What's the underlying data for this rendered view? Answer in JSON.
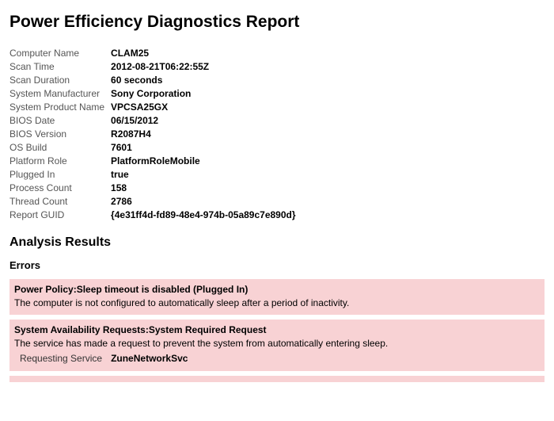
{
  "report": {
    "title": "Power Efficiency Diagnostics Report",
    "fields": [
      {
        "label": "Computer Name",
        "value": "CLAM25"
      },
      {
        "label": "Scan Time",
        "value": "2012-08-21T06:22:55Z"
      },
      {
        "label": "Scan Duration",
        "value": "60 seconds"
      },
      {
        "label": "System Manufacturer",
        "value": "Sony Corporation"
      },
      {
        "label": "System Product Name",
        "value": "VPCSA25GX"
      },
      {
        "label": "BIOS Date",
        "value": "06/15/2012"
      },
      {
        "label": "BIOS Version",
        "value": "R2087H4"
      },
      {
        "label": "OS Build",
        "value": "7601"
      },
      {
        "label": "Platform Role",
        "value": "PlatformRoleMobile"
      },
      {
        "label": "Plugged In",
        "value": "true"
      },
      {
        "label": "Process Count",
        "value": "158"
      },
      {
        "label": "Thread Count",
        "value": "2786"
      },
      {
        "label": "Report GUID",
        "value": "{4e31ff4d-fd89-48e4-974b-05a89c7e890d}"
      }
    ],
    "analysis_heading": "Analysis Results",
    "errors_heading": "Errors",
    "colors": {
      "error_background": "#f8d2d4",
      "page_background": "#ffffff",
      "label_color": "#555555",
      "text_color": "#000000"
    },
    "errors": [
      {
        "title": "Power Policy:Sleep timeout is disabled (Plugged In)",
        "description": "The computer is not configured to automatically sleep after a period of inactivity.",
        "details": []
      },
      {
        "title": "System Availability Requests:System Required Request",
        "description": "The service has made a request to prevent the system from automatically entering sleep.",
        "details": [
          {
            "label": "Requesting Service",
            "value": "ZuneNetworkSvc"
          }
        ]
      }
    ]
  }
}
